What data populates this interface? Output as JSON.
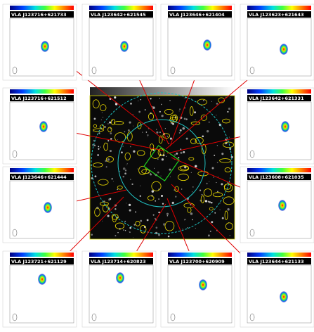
{
  "panels": [
    {
      "label": "VLA J123716+621733"
    },
    {
      "label": "VLA J123642+621545"
    },
    {
      "label": "VLA J123646+621404"
    },
    {
      "label": "VLA J123623+621643"
    },
    {
      "label": "VLA J123716+621512"
    },
    {
      "label": "VLA J123642+621331"
    },
    {
      "label": "VLA J123646+621444"
    },
    {
      "label": "VLA J123608+621035"
    },
    {
      "label": "VLA J123721+621129"
    },
    {
      "label": "VLA J123714+620823"
    },
    {
      "label": "VLA J123700+620909"
    },
    {
      "label": "VLA J123644+621133"
    }
  ]
}
